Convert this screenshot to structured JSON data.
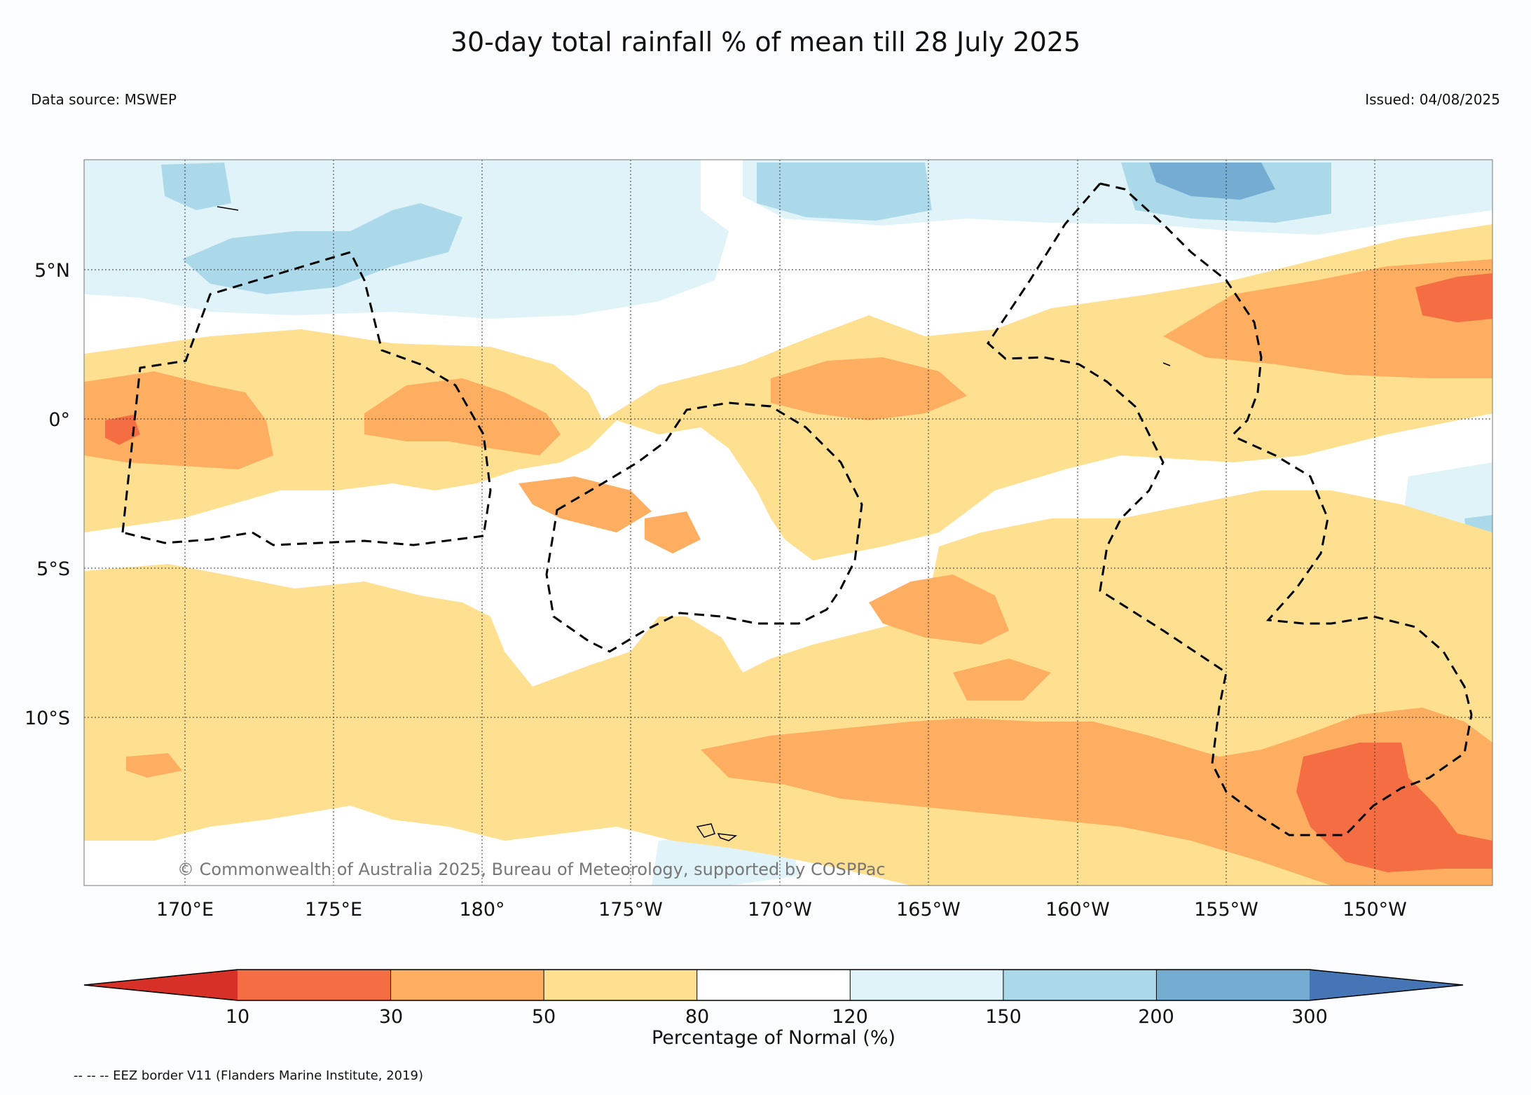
{
  "header": {
    "title": "30-day total rainfall % of mean till 28 July 2025",
    "data_source": "Data source: MSWEP",
    "issued": "Issued: 04/08/2025"
  },
  "map": {
    "lat_labels": [
      "5°N",
      "0°",
      "5°S",
      "10°S"
    ],
    "lon_labels": [
      "170°E",
      "175°E",
      "180°",
      "175°W",
      "170°W",
      "165°W",
      "160°W",
      "155°W",
      "150°W"
    ],
    "copyright": "© Commonwealth of Australia 2025, Bureau of Meteorology, supported by COSPPac"
  },
  "colorbar": {
    "label": "Percentage of Normal (%)",
    "ticks": [
      "10",
      "30",
      "50",
      "80",
      "120",
      "150",
      "200",
      "300"
    ],
    "colors": [
      "#d73027",
      "#f46d43",
      "#fdae61",
      "#fee090",
      "#ffffff",
      "#e0f3f8",
      "#abd9e9",
      "#74add1",
      "#4575b4"
    ]
  },
  "legend": {
    "eez_note": "-- -- -- EEZ border V11 (Flanders Marine Institute, 2019)"
  }
}
